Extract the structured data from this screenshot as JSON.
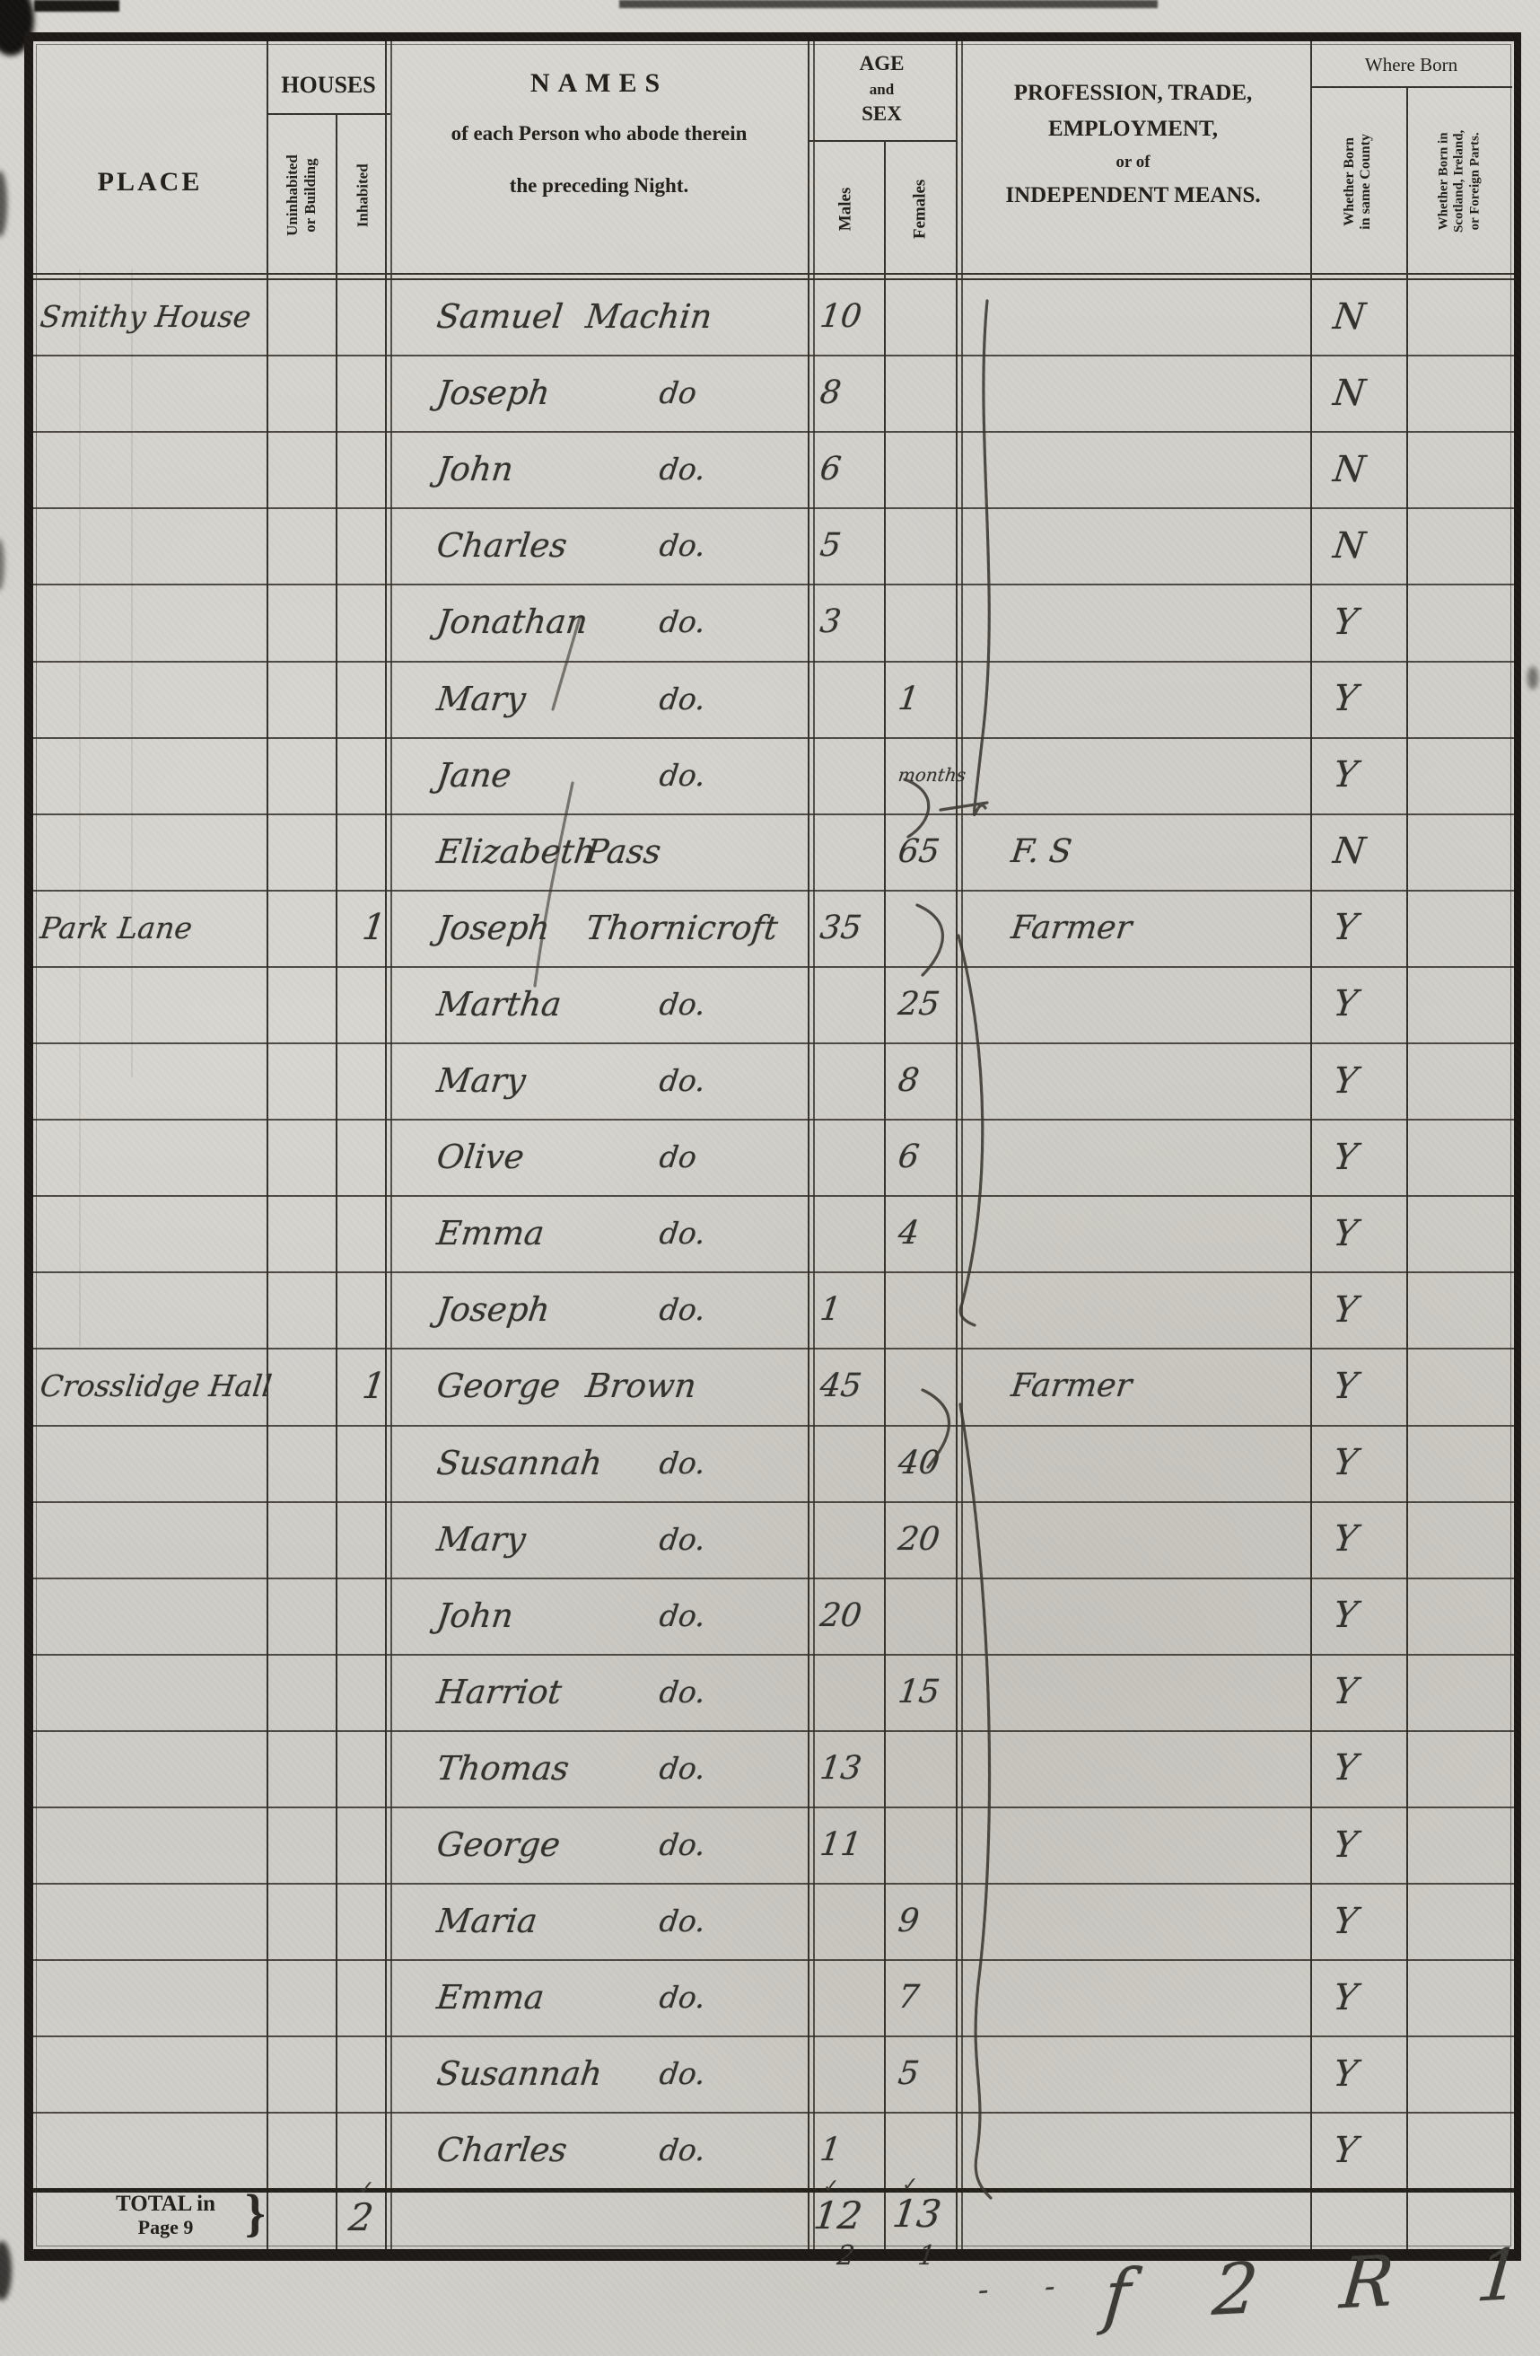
{
  "form": {
    "place_label": "PLACE",
    "houses_label": "HOUSES",
    "uninhabited_label_l1": "Uninhabited",
    "uninhabited_label_l2": "or Building",
    "inhabited_label": "Inhabited",
    "names_label": "NAMES",
    "names_sub1": "of each Person who abode therein",
    "names_sub2": "the preceding Night.",
    "age_l1": "AGE",
    "age_l2": "and",
    "age_l3": "SEX",
    "males_label": "Males",
    "females_label": "Females",
    "profession_l1": "PROFESSION, TRADE,",
    "profession_l2": "EMPLOYMENT,",
    "profession_l3": "or of",
    "profession_l4": "INDEPENDENT MEANS.",
    "where_born_label": "Where Born",
    "born_county_l1": "Whether Born",
    "born_county_l2": "in same County",
    "born_elsewhere_l1": "Whether Born in",
    "born_elsewhere_l2": "Scotland, Ireland,",
    "born_elsewhere_l3": "or Foreign Parts."
  },
  "rows": [
    {
      "place": "Smithy House",
      "inhabited": "",
      "name": "Samuel",
      "name2": "Machin",
      "ditto": "",
      "male_age": "10",
      "female_age": "",
      "profession": "",
      "born": "N"
    },
    {
      "place": "",
      "inhabited": "",
      "name": "Joseph",
      "name2": "",
      "ditto": "do",
      "male_age": "8",
      "female_age": "",
      "profession": "",
      "born": "N"
    },
    {
      "place": "",
      "inhabited": "",
      "name": "John",
      "name2": "",
      "ditto": "do.",
      "male_age": "6",
      "female_age": "",
      "profession": "",
      "born": "N"
    },
    {
      "place": "",
      "inhabited": "",
      "name": "Charles",
      "name2": "",
      "ditto": "do.",
      "male_age": "5",
      "female_age": "",
      "profession": "",
      "born": "N"
    },
    {
      "place": "",
      "inhabited": "",
      "name": "Jonathan",
      "name2": "",
      "ditto": "do.",
      "male_age": "3",
      "female_age": "",
      "profession": "",
      "born": "Y"
    },
    {
      "place": "",
      "inhabited": "",
      "name": "Mary",
      "name2": "",
      "ditto": "do.",
      "male_age": "",
      "female_age": "1",
      "profession": "",
      "born": "Y"
    },
    {
      "place": "",
      "inhabited": "",
      "name": "Jane",
      "name2": "",
      "ditto": "do.",
      "male_age": "",
      "female_age": "months",
      "profession": "",
      "born": "Y"
    },
    {
      "place": "",
      "inhabited": "",
      "name": "Elizabeth",
      "name2": "Pass",
      "ditto": "",
      "male_age": "",
      "female_age": "65",
      "profession": "F. S",
      "born": "N"
    },
    {
      "place": "Park Lane",
      "inhabited": "1",
      "name": "Joseph",
      "name2": "Thornicroft",
      "ditto": "",
      "male_age": "35",
      "female_age": "",
      "profession": "Farmer",
      "born": "Y"
    },
    {
      "place": "",
      "inhabited": "",
      "name": "Martha",
      "name2": "",
      "ditto": "do.",
      "male_age": "",
      "female_age": "25",
      "profession": "",
      "born": "Y"
    },
    {
      "place": "",
      "inhabited": "",
      "name": "Mary",
      "name2": "",
      "ditto": "do.",
      "male_age": "",
      "female_age": "8",
      "profession": "",
      "born": "Y"
    },
    {
      "place": "",
      "inhabited": "",
      "name": "Olive",
      "name2": "",
      "ditto": "do",
      "male_age": "",
      "female_age": "6",
      "profession": "",
      "born": "Y"
    },
    {
      "place": "",
      "inhabited": "",
      "name": "Emma",
      "name2": "",
      "ditto": "do.",
      "male_age": "",
      "female_age": "4",
      "profession": "",
      "born": "Y"
    },
    {
      "place": "",
      "inhabited": "",
      "name": "Joseph",
      "name2": "",
      "ditto": "do.",
      "male_age": "1",
      "female_age": "",
      "profession": "",
      "born": "Y"
    },
    {
      "place": "Crosslidge Hall",
      "inhabited": "1",
      "name": "George",
      "name2": "Brown",
      "ditto": "",
      "male_age": "45",
      "female_age": "",
      "profession": "Farmer",
      "born": "Y"
    },
    {
      "place": "",
      "inhabited": "",
      "name": "Susannah",
      "name2": "",
      "ditto": "do.",
      "male_age": "",
      "female_age": "40",
      "profession": "",
      "born": "Y"
    },
    {
      "place": "",
      "inhabited": "",
      "name": "Mary",
      "name2": "",
      "ditto": "do.",
      "male_age": "",
      "female_age": "20",
      "profession": "",
      "born": "Y"
    },
    {
      "place": "",
      "inhabited": "",
      "name": "John",
      "name2": "",
      "ditto": "do.",
      "male_age": "20",
      "female_age": "",
      "profession": "",
      "born": "Y"
    },
    {
      "place": "",
      "inhabited": "",
      "name": "Harriot",
      "name2": "",
      "ditto": "do.",
      "male_age": "",
      "female_age": "15",
      "profession": "",
      "born": "Y"
    },
    {
      "place": "",
      "inhabited": "",
      "name": "Thomas",
      "name2": "",
      "ditto": "do.",
      "male_age": "13",
      "female_age": "",
      "profession": "",
      "born": "Y"
    },
    {
      "place": "",
      "inhabited": "",
      "name": "George",
      "name2": "",
      "ditto": "do.",
      "male_age": "11",
      "female_age": "",
      "profession": "",
      "born": "Y"
    },
    {
      "place": "",
      "inhabited": "",
      "name": "Maria",
      "name2": "",
      "ditto": "do.",
      "male_age": "",
      "female_age": "9",
      "profession": "",
      "born": "Y"
    },
    {
      "place": "",
      "inhabited": "",
      "name": "Emma",
      "name2": "",
      "ditto": "do.",
      "male_age": "",
      "female_age": "7",
      "profession": "",
      "born": "Y"
    },
    {
      "place": "",
      "inhabited": "",
      "name": "Susannah",
      "name2": "",
      "ditto": "do.",
      "male_age": "",
      "female_age": "5",
      "profession": "",
      "born": "Y"
    },
    {
      "place": "",
      "inhabited": "",
      "name": "Charles",
      "name2": "",
      "ditto": "do.",
      "male_age": "1",
      "female_age": "",
      "profession": "",
      "born": "Y"
    }
  ],
  "totals": {
    "label_line1": "TOTAL in",
    "label_line2": "Page 9",
    "brace": "}",
    "inhabited": "2",
    "males": "12",
    "females": "13",
    "check_mark": "✓",
    "males_note": "2",
    "females_note": "1"
  },
  "annotations": {
    "pencil_bottom_right": "f 2 R 1",
    "pencil_dashes": "- -"
  }
}
